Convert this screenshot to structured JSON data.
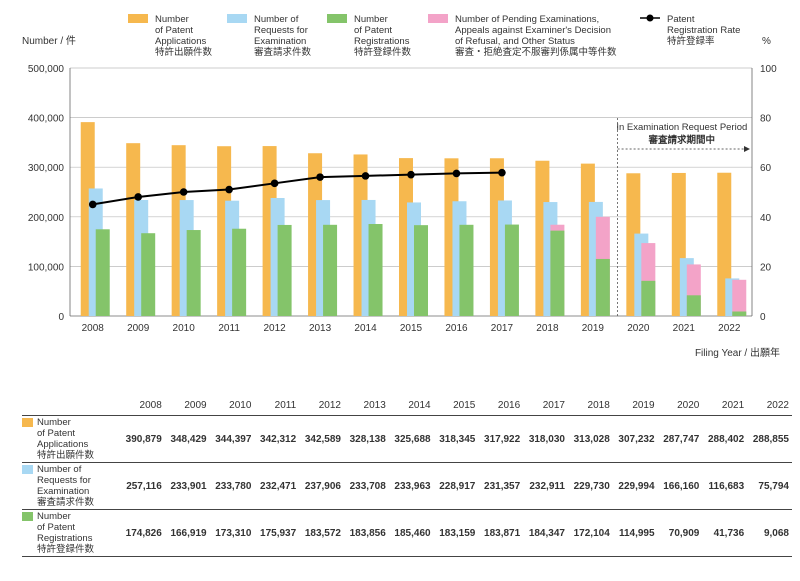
{
  "colors": {
    "applications": "#f6b84e",
    "requests": "#a8d8f3",
    "registrations": "#84c46a",
    "pending": "#f3a3c8",
    "rate": "#000000"
  },
  "legend": [
    {
      "key": "applications",
      "label": "Number\nof Patent\nApplications",
      "ja": "特許出願件数"
    },
    {
      "key": "requests",
      "label": "Number of\nRequests for\nExamination",
      "ja": "審査請求件数"
    },
    {
      "key": "registrations",
      "label": "Number\nof Patent\nRegistrations",
      "ja": "特許登録件数"
    },
    {
      "key": "pending",
      "label": "Number of Pending Examinations,\nAppeals against Examiner's Decision\nof Refusal, and Other Status",
      "ja": "審査・拒絶査定不服審判係属中等件数"
    },
    {
      "key": "rate",
      "label": "Patent\nRegistration Rate",
      "ja": "特許登録率"
    }
  ],
  "chart_data": {
    "type": "bar",
    "y_left_label": "Number / 件",
    "y_right_label": "%",
    "xlabel": "Filing Year / 出願年",
    "ylim": [
      0,
      500000
    ],
    "y2lim": [
      0,
      100
    ],
    "y_ticks": [
      "0",
      "100,000",
      "200,000",
      "300,000",
      "400,000",
      "500,000"
    ],
    "y2_ticks": [
      "0",
      "20",
      "40",
      "60",
      "80",
      "100"
    ],
    "categories": [
      "2008",
      "2009",
      "2010",
      "2011",
      "2012",
      "2013",
      "2014",
      "2015",
      "2016",
      "2017",
      "2018",
      "2019",
      "2020",
      "2021",
      "2022"
    ],
    "series": [
      {
        "name": "Number of Patent Applications",
        "key": "applications",
        "values": [
          390879,
          348429,
          344397,
          342312,
          342589,
          328138,
          325688,
          318345,
          317922,
          318030,
          313028,
          307232,
          287747,
          288402,
          288855
        ]
      },
      {
        "name": "Number of Requests for Examination",
        "key": "requests",
        "values": [
          257116,
          233901,
          233780,
          232471,
          237906,
          233708,
          233963,
          228917,
          231357,
          232911,
          229730,
          229994,
          166160,
          116683,
          75794
        ]
      },
      {
        "name": "Number of Patent Registrations",
        "key": "registrations",
        "values": [
          174826,
          166919,
          173310,
          175937,
          183572,
          183856,
          185460,
          183159,
          183871,
          184347,
          172104,
          114995,
          70909,
          41736,
          9068
        ]
      },
      {
        "name": "Number of Pending Examinations, Appeals against Examiner's Decision of Refusal, and Other Status",
        "key": "pending",
        "values": [
          null,
          null,
          null,
          null,
          null,
          null,
          null,
          null,
          null,
          null,
          184000,
          200000,
          147000,
          104000,
          73000
        ]
      },
      {
        "name": "Patent Registration Rate",
        "key": "rate",
        "axis": "right",
        "values": [
          45,
          48,
          50,
          51,
          53.5,
          56,
          56.5,
          57,
          57.5,
          57.8,
          null,
          null,
          null,
          null,
          null
        ]
      }
    ],
    "annotation": {
      "text": "In Examination Request Period",
      "ja": "審査請求期間中",
      "from": "2020",
      "to": "2022"
    }
  },
  "table": {
    "years": [
      "2008",
      "2009",
      "2010",
      "2011",
      "2012",
      "2013",
      "2014",
      "2015",
      "2016",
      "2017",
      "2018",
      "2019",
      "2020",
      "2021",
      "2022"
    ],
    "rows": [
      {
        "key": "applications",
        "label": "Number\nof Patent\nApplications",
        "ja": "特許出願件数",
        "values": [
          "390,879",
          "348,429",
          "344,397",
          "342,312",
          "342,589",
          "328,138",
          "325,688",
          "318,345",
          "317,922",
          "318,030",
          "313,028",
          "307,232",
          "287,747",
          "288,402",
          "288,855"
        ]
      },
      {
        "key": "requests",
        "label": "Number of\nRequests for\nExamination",
        "ja": "審査請求件数",
        "values": [
          "257,116",
          "233,901",
          "233,780",
          "232,471",
          "237,906",
          "233,708",
          "233,963",
          "228,917",
          "231,357",
          "232,911",
          "229,730",
          "229,994",
          "166,160",
          "116,683",
          "75,794"
        ]
      },
      {
        "key": "registrations",
        "label": "Number\nof Patent\nRegistrations",
        "ja": "特許登録件数",
        "values": [
          "174,826",
          "166,919",
          "173,310",
          "175,937",
          "183,572",
          "183,856",
          "185,460",
          "183,159",
          "183,871",
          "184,347",
          "172,104",
          "114,995",
          "70,909",
          "41,736",
          "9,068"
        ]
      }
    ]
  }
}
